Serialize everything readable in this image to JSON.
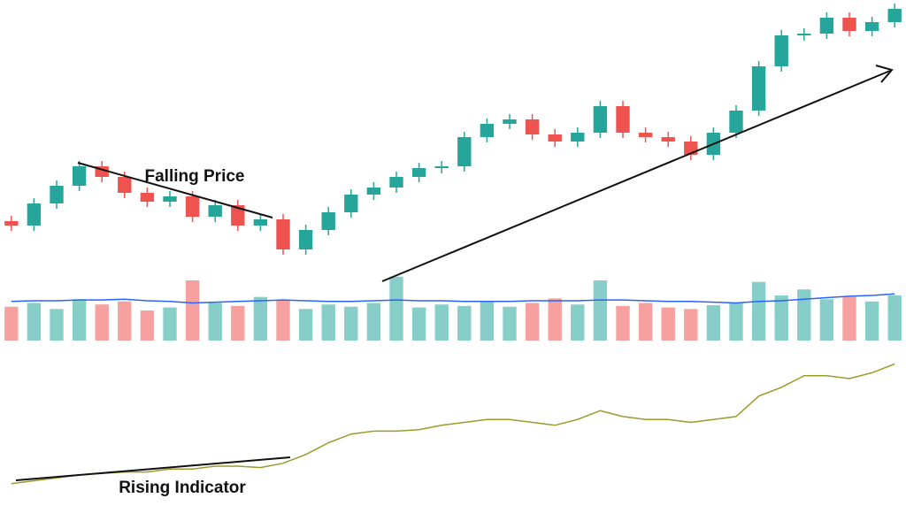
{
  "chart_data": [
    {
      "type": "candlestick",
      "annotation": "Falling Price",
      "open": [
        50,
        45,
        70,
        90,
        112,
        100,
        82,
        72,
        78,
        55,
        68,
        45,
        52,
        18,
        40,
        60,
        80,
        88,
        100,
        110,
        112,
        145,
        160,
        165,
        148,
        140,
        150,
        180,
        150,
        145,
        140,
        125,
        150,
        175,
        225,
        260,
        262,
        280,
        265,
        275
      ],
      "high": [
        56,
        76,
        96,
        118,
        118,
        106,
        88,
        84,
        84,
        74,
        74,
        58,
        58,
        46,
        66,
        86,
        94,
        106,
        116,
        118,
        151,
        166,
        171,
        171,
        154,
        156,
        186,
        186,
        156,
        151,
        146,
        156,
        181,
        231,
        266,
        268,
        286,
        286,
        281,
        296
      ],
      "low": [
        39,
        39,
        64,
        84,
        94,
        76,
        66,
        66,
        49,
        49,
        39,
        39,
        12,
        12,
        34,
        54,
        74,
        82,
        94,
        104,
        106,
        139,
        154,
        142,
        134,
        134,
        144,
        144,
        139,
        134,
        119,
        119,
        144,
        169,
        219,
        254,
        256,
        259,
        259,
        269
      ],
      "close": [
        45,
        70,
        90,
        112,
        100,
        82,
        72,
        78,
        55,
        68,
        45,
        52,
        18,
        40,
        60,
        80,
        88,
        100,
        110,
        112,
        145,
        160,
        165,
        148,
        140,
        150,
        180,
        150,
        145,
        140,
        125,
        150,
        175,
        225,
        260,
        262,
        280,
        265,
        275,
        290
      ],
      "up_color": "#26a69a",
      "down_color": "#ef5350",
      "ylim": [
        0,
        300
      ]
    },
    {
      "type": "bar",
      "values": [
        45,
        50,
        42,
        55,
        48,
        52,
        40,
        44,
        80,
        50,
        46,
        58,
        54,
        42,
        48,
        45,
        50,
        85,
        44,
        48,
        46,
        52,
        45,
        50,
        56,
        48,
        80,
        46,
        50,
        44,
        42,
        47,
        50,
        78,
        60,
        68,
        55,
        58,
        52,
        60
      ],
      "opacity": 0.55,
      "line": {
        "color": "#2962ff",
        "values": [
          52,
          53,
          53,
          54,
          54,
          55,
          53,
          52,
          50,
          51,
          52,
          53,
          54,
          53,
          52,
          52,
          53,
          54,
          53,
          53,
          52,
          52,
          52,
          53,
          53,
          53,
          54,
          54,
          53,
          52,
          52,
          51,
          50,
          52,
          53,
          55,
          57,
          59,
          60,
          62
        ]
      },
      "ylim": [
        0,
        100
      ]
    },
    {
      "type": "line",
      "annotation": "Rising Indicator",
      "color": "#9c9a2b",
      "values": [
        8,
        10,
        12,
        14,
        15,
        16,
        16,
        18,
        18,
        20,
        20,
        19,
        22,
        28,
        36,
        42,
        44,
        44,
        45,
        48,
        50,
        52,
        52,
        50,
        48,
        52,
        58,
        54,
        52,
        52,
        50,
        52,
        54,
        68,
        74,
        82,
        82,
        80,
        84,
        90
      ],
      "ylim": [
        0,
        100
      ]
    }
  ]
}
